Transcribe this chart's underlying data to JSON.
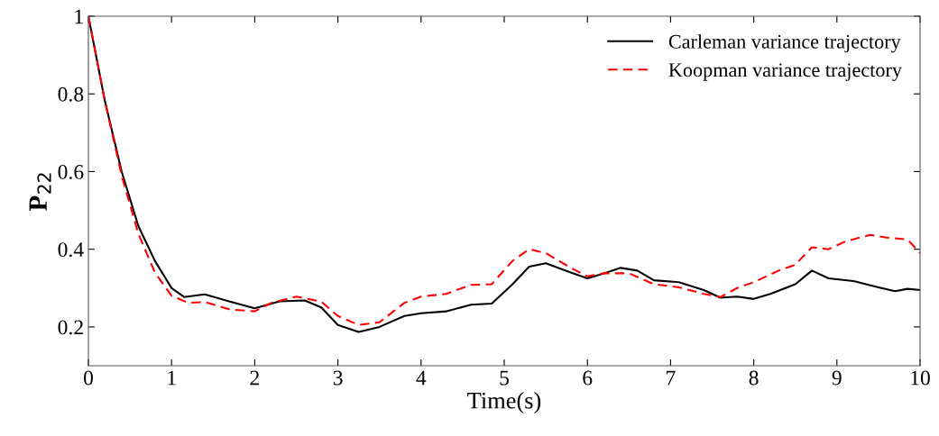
{
  "chart_data": {
    "type": "line",
    "xlabel": "Time(s)",
    "ylabel": "P$_{22}$",
    "xlim": [
      0,
      10
    ],
    "ylim": [
      0.1,
      1
    ],
    "xticks": [
      0,
      1,
      2,
      3,
      4,
      5,
      6,
      7,
      8,
      9,
      10
    ],
    "yticks": [
      0.2,
      0.4,
      0.6,
      0.8,
      1
    ],
    "legend": "top right",
    "grid": false,
    "series": [
      {
        "name": "Carleman variance trajectory",
        "color": "#000000",
        "line_style": "solid",
        "x": [
          0,
          0.2,
          0.4,
          0.6,
          0.8,
          1.0,
          1.15,
          1.4,
          1.7,
          2.0,
          2.3,
          2.6,
          2.8,
          3.0,
          3.25,
          3.5,
          3.8,
          4.0,
          4.3,
          4.6,
          4.85,
          5.1,
          5.3,
          5.5,
          5.8,
          6.0,
          6.2,
          6.4,
          6.6,
          6.8,
          7.1,
          7.4,
          7.6,
          7.8,
          8.0,
          8.2,
          8.5,
          8.7,
          8.9,
          9.2,
          9.5,
          9.7,
          9.85,
          10
        ],
        "values": [
          1.0,
          0.78,
          0.6,
          0.46,
          0.37,
          0.3,
          0.277,
          0.284,
          0.265,
          0.248,
          0.266,
          0.268,
          0.25,
          0.205,
          0.187,
          0.2,
          0.228,
          0.235,
          0.24,
          0.257,
          0.26,
          0.31,
          0.355,
          0.364,
          0.34,
          0.325,
          0.338,
          0.352,
          0.345,
          0.32,
          0.315,
          0.295,
          0.275,
          0.278,
          0.272,
          0.285,
          0.31,
          0.345,
          0.325,
          0.318,
          0.302,
          0.292,
          0.298,
          0.295
        ]
      },
      {
        "name": "Koopman variance trajectory",
        "color": "#ff0000",
        "line_style": "dashed",
        "x": [
          0,
          0.2,
          0.4,
          0.6,
          0.8,
          1.0,
          1.2,
          1.4,
          1.7,
          2.0,
          2.2,
          2.5,
          2.8,
          3.0,
          3.25,
          3.5,
          3.8,
          4.0,
          4.3,
          4.6,
          4.85,
          5.1,
          5.3,
          5.5,
          5.8,
          6.0,
          6.2,
          6.5,
          6.8,
          7.1,
          7.4,
          7.6,
          7.8,
          8.0,
          8.3,
          8.5,
          8.7,
          8.9,
          9.1,
          9.4,
          9.6,
          9.85,
          10
        ],
        "values": [
          1.0,
          0.78,
          0.59,
          0.44,
          0.34,
          0.28,
          0.262,
          0.264,
          0.245,
          0.24,
          0.262,
          0.278,
          0.265,
          0.228,
          0.205,
          0.212,
          0.262,
          0.278,
          0.285,
          0.308,
          0.31,
          0.37,
          0.4,
          0.39,
          0.352,
          0.33,
          0.338,
          0.338,
          0.31,
          0.302,
          0.285,
          0.277,
          0.3,
          0.315,
          0.345,
          0.36,
          0.405,
          0.4,
          0.42,
          0.437,
          0.43,
          0.425,
          0.39
        ]
      }
    ]
  }
}
